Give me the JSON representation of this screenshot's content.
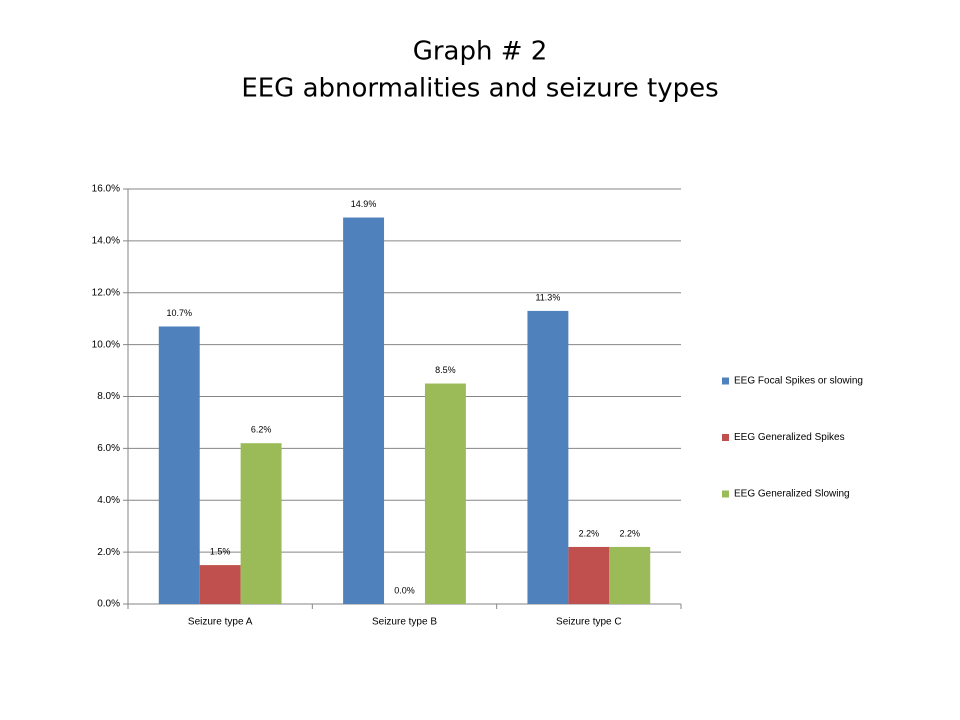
{
  "chart_data": {
    "type": "bar",
    "title": "Graph # 2",
    "subtitle": "EEG abnormalities and seizure types",
    "categories": [
      "Seizure type A",
      "Seizure type B",
      "Seizure type C"
    ],
    "series": [
      {
        "name": "EEG Focal Spikes or slowing",
        "color": "#4f81bd",
        "values": [
          10.7,
          14.9,
          11.3
        ],
        "value_labels": [
          "10.7%",
          "14.9%",
          "11.3%"
        ]
      },
      {
        "name": "EEG Generalized Spikes",
        "color": "#c0504d",
        "values": [
          1.5,
          0.0,
          2.2
        ],
        "value_labels": [
          "1.5%",
          "0.0%",
          "2.2%"
        ]
      },
      {
        "name": "EEG Generalized Slowing",
        "color": "#9bbb59",
        "values": [
          6.2,
          8.5,
          2.2
        ],
        "value_labels": [
          "6.2%",
          "8.5%",
          "2.2%"
        ]
      }
    ],
    "ylim": [
      0,
      16
    ],
    "yticks": [
      {
        "value": 0,
        "label": "0.0%"
      },
      {
        "value": 2,
        "label": "2.0%"
      },
      {
        "value": 4,
        "label": "4.0%"
      },
      {
        "value": 6,
        "label": "6.0%"
      },
      {
        "value": 8,
        "label": "8.0%"
      },
      {
        "value": 10,
        "label": "10.0%"
      },
      {
        "value": 12,
        "label": "12.0%"
      },
      {
        "value": 14,
        "label": "14.0%"
      },
      {
        "value": 16,
        "label": "16.0%"
      }
    ],
    "grid": true,
    "legend": "right"
  }
}
